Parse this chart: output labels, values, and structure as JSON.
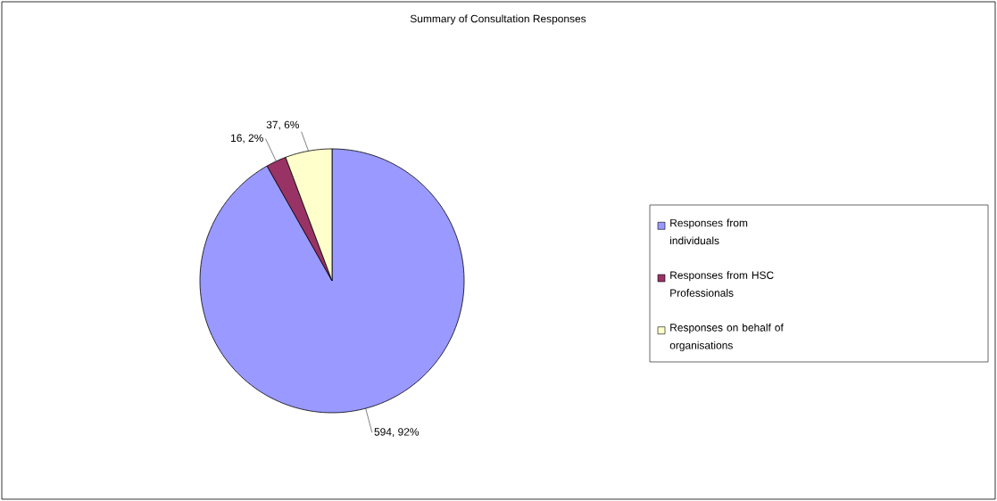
{
  "chart_data": {
    "type": "pie",
    "title": "Summary of Consultation Responses",
    "categories": [
      "Responses from individuals",
      "Responses from HSC Professionals",
      "Responses on behalf of organisations"
    ],
    "values": [
      594,
      16,
      37
    ],
    "colors": [
      "#9999ff",
      "#993366",
      "#ffffcc"
    ],
    "value_labels": [
      "594, 92%",
      "16, 2%",
      "37, 6%"
    ],
    "legend": "right"
  }
}
